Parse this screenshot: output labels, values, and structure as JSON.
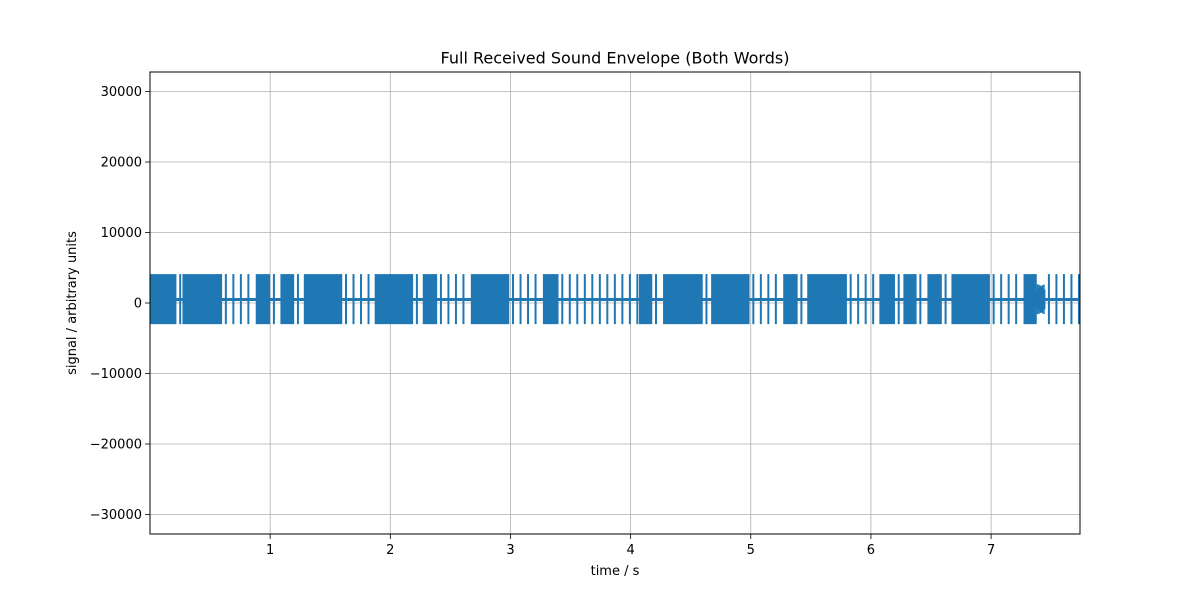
{
  "chart_data": {
    "type": "line",
    "title": "Full Received Sound Envelope (Both Words)",
    "xlabel": "time / s",
    "ylabel": "signal / arbitrary units",
    "xlim": [
      0.0,
      7.74
    ],
    "ylim": [
      -32768,
      32767
    ],
    "xticks": [
      1,
      2,
      3,
      4,
      5,
      6,
      7
    ],
    "yticks": [
      -30000,
      -20000,
      -10000,
      0,
      10000,
      20000,
      30000
    ],
    "ytick_labels": [
      "−30000",
      "−20000",
      "−10000",
      "0",
      "10000",
      "20000",
      "30000"
    ],
    "grid": true,
    "baseline": 500,
    "dash_amplitude": {
      "max": 4100,
      "min": -3000
    },
    "pulse_period_s": 0.0625,
    "series": [
      {
        "color": "#1f77b4",
        "segments": [
          {
            "kind": "dash",
            "start": 0.0,
            "end": 0.22
          },
          {
            "kind": "dot",
            "start": 0.22,
            "end": 0.27
          },
          {
            "kind": "dash",
            "start": 0.27,
            "end": 0.6
          },
          {
            "kind": "dot",
            "start": 0.6,
            "end": 0.88
          },
          {
            "kind": "dash",
            "start": 0.88,
            "end": 1.0
          },
          {
            "kind": "dot",
            "start": 1.0,
            "end": 1.1
          },
          {
            "kind": "dash",
            "start": 1.1,
            "end": 1.2
          },
          {
            "kind": "dot",
            "start": 1.2,
            "end": 1.28
          },
          {
            "kind": "dash",
            "start": 1.28,
            "end": 1.6
          },
          {
            "kind": "dot",
            "start": 1.6,
            "end": 1.87
          },
          {
            "kind": "dash",
            "start": 1.87,
            "end": 2.19
          },
          {
            "kind": "dot",
            "start": 2.19,
            "end": 2.27
          },
          {
            "kind": "dash",
            "start": 2.27,
            "end": 2.39
          },
          {
            "kind": "dot",
            "start": 2.39,
            "end": 2.67
          },
          {
            "kind": "dash",
            "start": 2.67,
            "end": 2.99
          },
          {
            "kind": "dot",
            "start": 2.99,
            "end": 3.27
          },
          {
            "kind": "dash",
            "start": 3.27,
            "end": 3.4
          },
          {
            "kind": "dot",
            "start": 3.4,
            "end": 4.07
          },
          {
            "kind": "dash",
            "start": 4.07,
            "end": 4.18
          },
          {
            "kind": "dot",
            "start": 4.18,
            "end": 4.27
          },
          {
            "kind": "dash",
            "start": 4.27,
            "end": 4.6
          },
          {
            "kind": "dot",
            "start": 4.6,
            "end": 4.67
          },
          {
            "kind": "dash",
            "start": 4.67,
            "end": 4.99
          },
          {
            "kind": "dot",
            "start": 4.99,
            "end": 5.27
          },
          {
            "kind": "dash",
            "start": 5.27,
            "end": 5.39
          },
          {
            "kind": "dot",
            "start": 5.39,
            "end": 5.47
          },
          {
            "kind": "dash",
            "start": 5.47,
            "end": 5.8
          },
          {
            "kind": "dot",
            "start": 5.8,
            "end": 6.07
          },
          {
            "kind": "dash",
            "start": 6.07,
            "end": 6.2
          },
          {
            "kind": "dot",
            "start": 6.2,
            "end": 6.27
          },
          {
            "kind": "dash",
            "start": 6.27,
            "end": 6.38
          },
          {
            "kind": "dot",
            "start": 6.38,
            "end": 6.47
          },
          {
            "kind": "dash",
            "start": 6.47,
            "end": 6.59
          },
          {
            "kind": "dot",
            "start": 6.59,
            "end": 6.67
          },
          {
            "kind": "dash",
            "start": 6.67,
            "end": 6.99
          },
          {
            "kind": "dot",
            "start": 6.99,
            "end": 7.27
          },
          {
            "kind": "dash",
            "start": 7.27,
            "end": 7.38
          },
          {
            "kind": "noise",
            "start": 7.38,
            "end": 7.45
          },
          {
            "kind": "dot",
            "start": 7.45,
            "end": 7.74
          }
        ]
      }
    ]
  }
}
